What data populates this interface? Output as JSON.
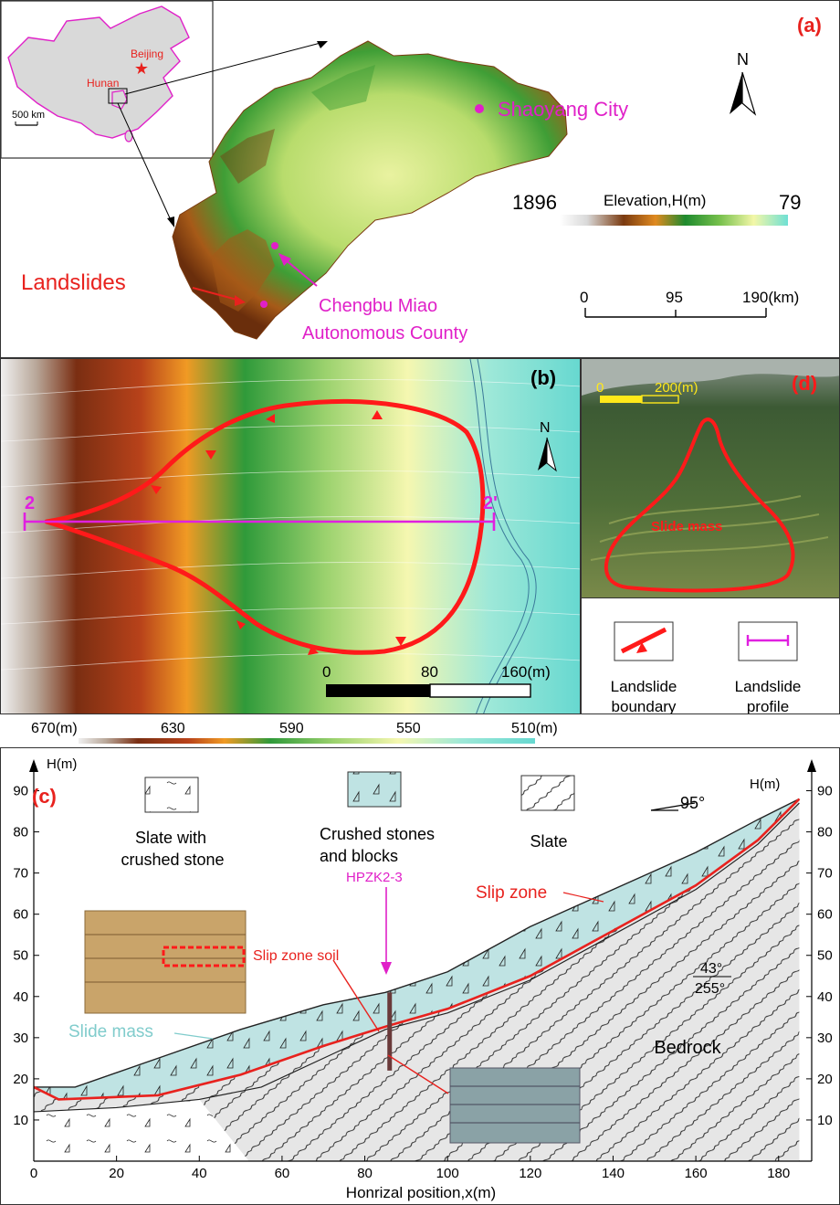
{
  "panel_a": {
    "label": "(a)",
    "inset": {
      "beijing": "Beijing",
      "hunan": "Hunan",
      "scale": "500 km"
    },
    "north": "N",
    "city": "Shaoyang City",
    "county_line1": "Chengbu Miao",
    "county_line2": "Autonomous County",
    "landslides": "Landslides",
    "elevation_title": "Elevation,H(m)",
    "elevation_max": "1896",
    "elevation_min": "79",
    "scale_ticks": [
      "0",
      "95",
      "190(km)"
    ]
  },
  "panel_b": {
    "label": "(b)",
    "north": "N",
    "profile_start": "2",
    "profile_end": "2'",
    "scale_ticks": [
      "0",
      "80",
      "160(m)"
    ],
    "colorbar_ticks": [
      "670(m)",
      "630",
      "590",
      "550",
      "510(m)"
    ]
  },
  "panel_d": {
    "label": "(d)",
    "scale_ticks": [
      "0",
      "200(m)"
    ],
    "slide_mass": "Slide mass"
  },
  "legend": {
    "boundary_line1": "Landslide",
    "boundary_line2": "boundary",
    "profile_line1": "Landslide",
    "profile_line2": "profile"
  },
  "panel_c": {
    "label": "(c)",
    "axis_left": "H(m)",
    "axis_right": "H(m)",
    "xlabel": "Honrizal position,x(m)",
    "legend_slate_crushed_1": "Slate with",
    "legend_slate_crushed_2": "crushed stone",
    "legend_crushed_1": "Crushed stones",
    "legend_crushed_2": "and blocks",
    "legend_slate": "Slate",
    "strike": "95°",
    "slip_zone": "Slip zone",
    "borehole": "HPZK2-3",
    "slip_zone_soil": "Slip zone soil",
    "slide_mass": "Slide mass",
    "bedrock": "Bedrock",
    "dip_top": "43°",
    "dip_bottom": "255°",
    "x_ticks": [
      0,
      20,
      40,
      60,
      80,
      100,
      120,
      140,
      160,
      180
    ],
    "y_ticks": [
      10,
      20,
      30,
      40,
      50,
      60,
      70,
      80,
      90
    ],
    "xlim": [
      0,
      188
    ],
    "ylim": [
      0,
      95
    ],
    "ground_profile": [
      [
        0,
        18
      ],
      [
        10,
        18
      ],
      [
        30,
        25
      ],
      [
        50,
        32
      ],
      [
        70,
        38
      ],
      [
        85,
        41
      ],
      [
        100,
        46
      ],
      [
        120,
        57
      ],
      [
        140,
        66
      ],
      [
        160,
        75
      ],
      [
        175,
        83
      ],
      [
        185,
        88
      ]
    ],
    "slip_surface": [
      [
        0,
        18
      ],
      [
        6,
        15
      ],
      [
        30,
        16
      ],
      [
        50,
        21
      ],
      [
        70,
        28
      ],
      [
        86,
        33
      ],
      [
        100,
        37
      ],
      [
        120,
        45
      ],
      [
        140,
        56
      ],
      [
        160,
        67
      ],
      [
        175,
        78
      ],
      [
        185,
        88
      ]
    ],
    "slate_top": [
      [
        0,
        12
      ],
      [
        20,
        13
      ],
      [
        40,
        15
      ],
      [
        55,
        18
      ],
      [
        70,
        25
      ],
      [
        85,
        32
      ],
      [
        100,
        36
      ],
      [
        120,
        44
      ],
      [
        140,
        55
      ],
      [
        160,
        66
      ],
      [
        175,
        77
      ],
      [
        185,
        87
      ]
    ]
  },
  "colors": {
    "accent_red": "#e8221e",
    "magenta": "#e020c8",
    "slide_fill": "#bfe3e3",
    "bedrock_fill": "#e6e6e6"
  }
}
